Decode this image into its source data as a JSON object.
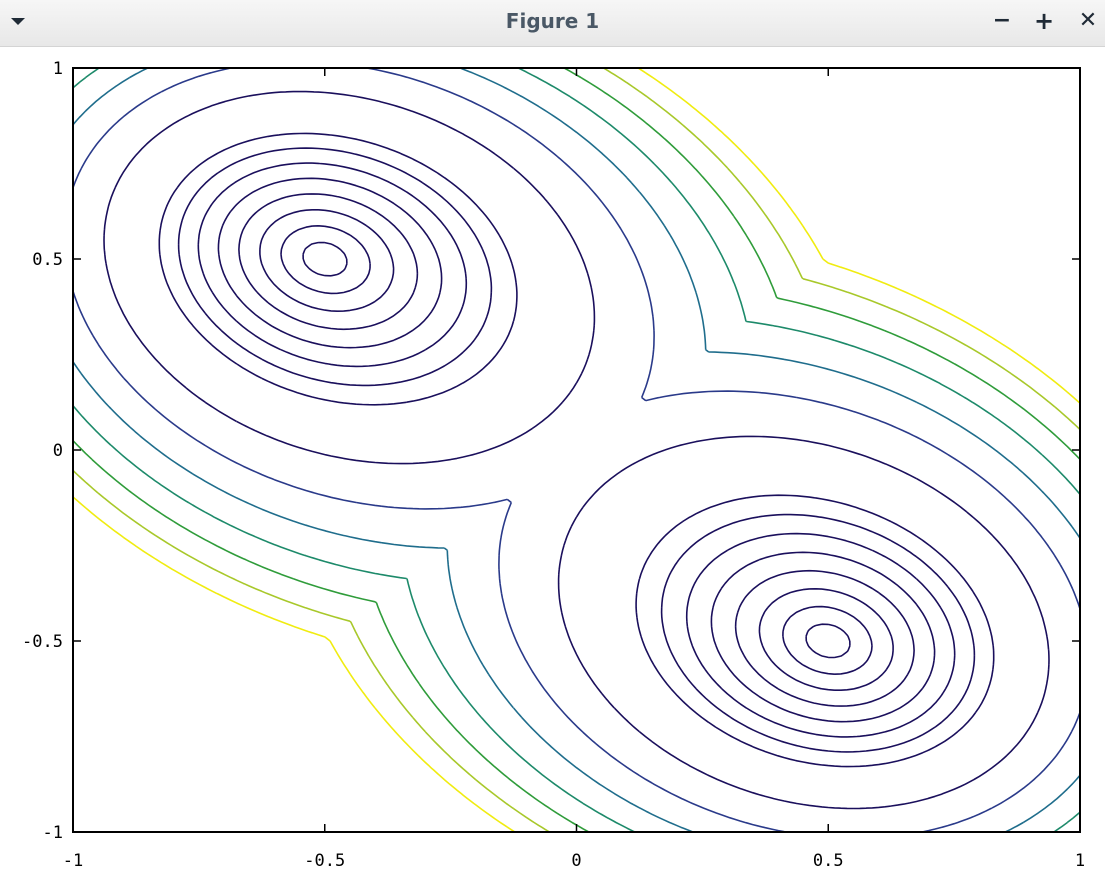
{
  "window": {
    "title": "Figure 1",
    "menu_icon": "triangle-down-icon",
    "minimize_label": "−",
    "maximize_label": "+",
    "close_label": "✕"
  },
  "chart_data": {
    "type": "contour",
    "title": "",
    "xlabel": "",
    "ylabel": "",
    "xlim": [
      -1,
      1
    ],
    "ylim": [
      -1,
      1
    ],
    "xticks": [
      -1,
      -0.5,
      0,
      0.5,
      1
    ],
    "yticks": [
      -1,
      -0.5,
      0,
      0.5,
      1
    ],
    "xtick_labels": [
      "-1",
      "-0.5",
      "0",
      "0.5",
      "1"
    ],
    "ytick_labels": [
      "-1",
      "-0.5",
      "0",
      "0.5",
      "1"
    ],
    "grid": false,
    "colormap": [
      "#1a0f5c",
      "#2a3a8a",
      "#1f6d8c",
      "#1d8a6a",
      "#2f9c3a",
      "#a8c82a",
      "#f0ec10"
    ],
    "minima": [
      {
        "x": -0.5,
        "y": 0.5
      },
      {
        "x": 0.5,
        "y": -0.5
      }
    ],
    "saddle": {
      "x": 0.0,
      "y": 0.0
    },
    "levels_near_minima": 8,
    "levels_outer": 7
  }
}
